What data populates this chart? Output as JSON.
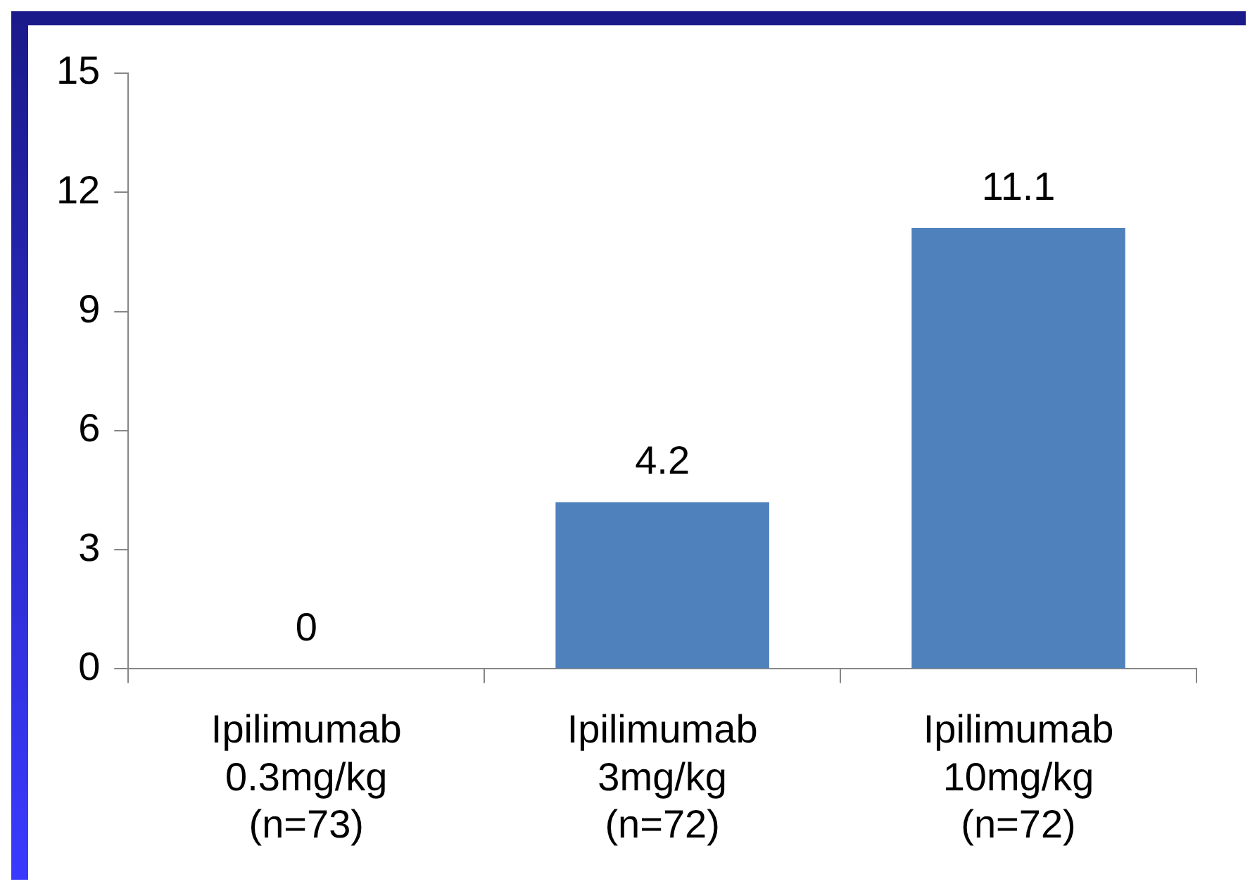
{
  "chart_data": {
    "type": "bar",
    "categories": [
      "Ipilimumab\n0.3mg/kg\n(n=73)",
      "Ipilimumab\n3mg/kg\n(n=72)",
      "Ipilimumab\n10mg/kg\n(n=72)"
    ],
    "values": [
      0,
      4.2,
      11.1
    ],
    "color": "#4f81bd",
    "ylim": [
      0,
      15
    ],
    "yticks": [
      0,
      3,
      6,
      9,
      12,
      15
    ],
    "grid": false,
    "legend": false,
    "data_labels": true
  }
}
